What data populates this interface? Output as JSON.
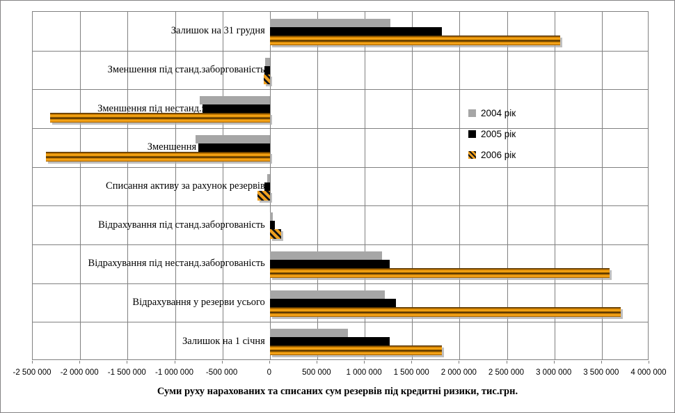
{
  "chart_data": {
    "type": "bar",
    "orientation": "horizontal",
    "title": "Суми руху нарахованих та списаних сум резервів під кредитні ризики, тис.грн.",
    "categories": [
      "Залишок на 31 грудня",
      "Зменшення під станд.заборгованість",
      "Зменшення під нестанд.заборгованість",
      "Зменшення резервів усього",
      "Списання активу за рахунок резервів",
      "Відрахування під станд.заборгованість",
      "Відрахування під нестанд.заборгованість",
      "Відрахування у резерви усього",
      "Залишок на 1 січня"
    ],
    "series": [
      {
        "name": "2004 рік",
        "color": "#a6a6a6",
        "values": [
          1270000,
          -50000,
          -740000,
          -785000,
          -25000,
          30000,
          1185000,
          1215000,
          820000
        ]
      },
      {
        "name": "2005 рік",
        "color": "#000000",
        "values": [
          1815000,
          -60000,
          -710000,
          -755000,
          -55000,
          55000,
          1265000,
          1330000,
          1265000
        ]
      },
      {
        "name": "2006 рік",
        "color": "#e8940a",
        "fill_style": "orange-hatch-gradient",
        "values": [
          3060000,
          -65000,
          -2320000,
          -2360000,
          -130000,
          120000,
          3585000,
          3700000,
          1815000
        ]
      }
    ],
    "xlim": [
      -2500000,
      4000000
    ],
    "x_tick_step": 500000,
    "x_tick_labels": [
      "-2 500 000",
      "-2 000 000",
      "-1 500 000",
      "-1 000 000",
      "-500 000",
      "0",
      "500 000",
      "1 000 000",
      "1 500 000",
      "2 000 000",
      "2 500 000",
      "3 000 000",
      "3 500 000",
      "4 000 000"
    ],
    "grid": true,
    "gridline_color": "#808080",
    "legend_position": "inside-right",
    "xlabel": "",
    "ylabel": ""
  }
}
